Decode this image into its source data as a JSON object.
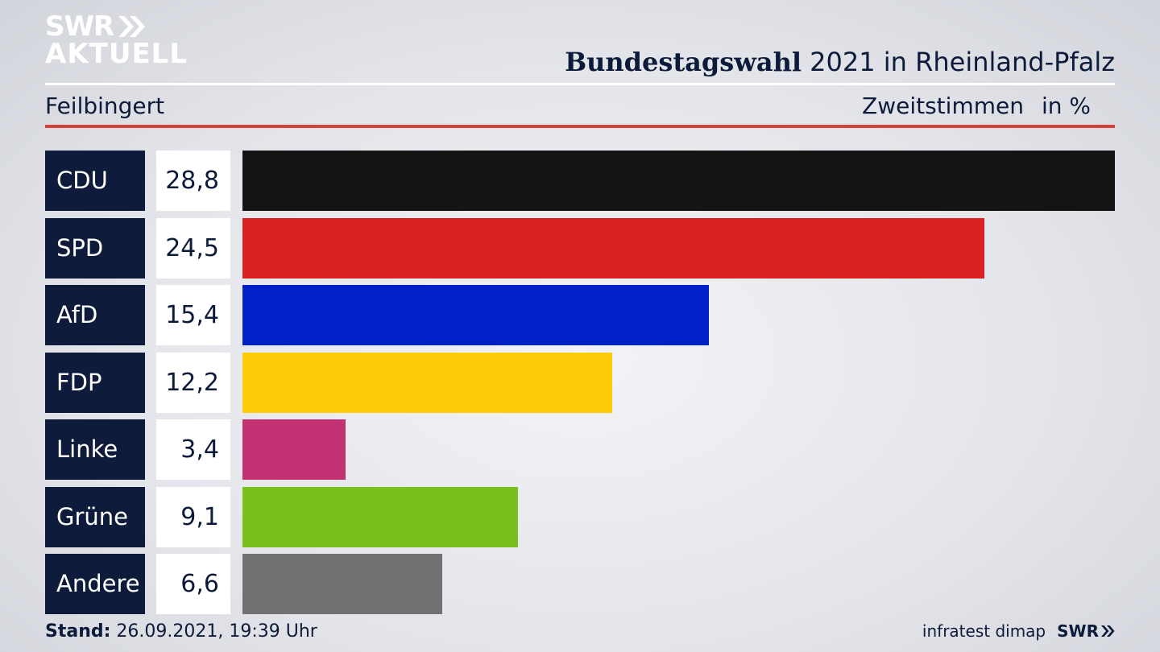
{
  "logo": {
    "line1": "SWR",
    "line2": "AKTUELL"
  },
  "header": {
    "title_bold": "Bundestagswahl",
    "title_rest": " 2021 in Rheinland-Pfalz",
    "region": "Feilbingert",
    "vote_type": "Zweitstimmen",
    "unit": "in %"
  },
  "chart_data": {
    "type": "bar",
    "orientation": "horizontal",
    "categories": [
      "CDU",
      "SPD",
      "AfD",
      "FDP",
      "Linke",
      "Grüne",
      "Andere"
    ],
    "value_labels": [
      "28,8",
      "24,5",
      "15,4",
      "12,2",
      "3,4",
      "9,1",
      "6,6"
    ],
    "values": [
      28.8,
      24.5,
      15.4,
      12.2,
      3.4,
      9.1,
      6.6
    ],
    "colors": [
      "#141414",
      "#da2021",
      "#0021c7",
      "#fecd0a",
      "#c23273",
      "#79bf1d",
      "#717174"
    ],
    "xlim": [
      0,
      28.8
    ],
    "grid": false,
    "legend": "none"
  },
  "footer": {
    "stand_label": "Stand:",
    "stand_value": " 26.09.2021, 19:39 Uhr",
    "source": "infratest dimap",
    "brand": "SWR"
  }
}
